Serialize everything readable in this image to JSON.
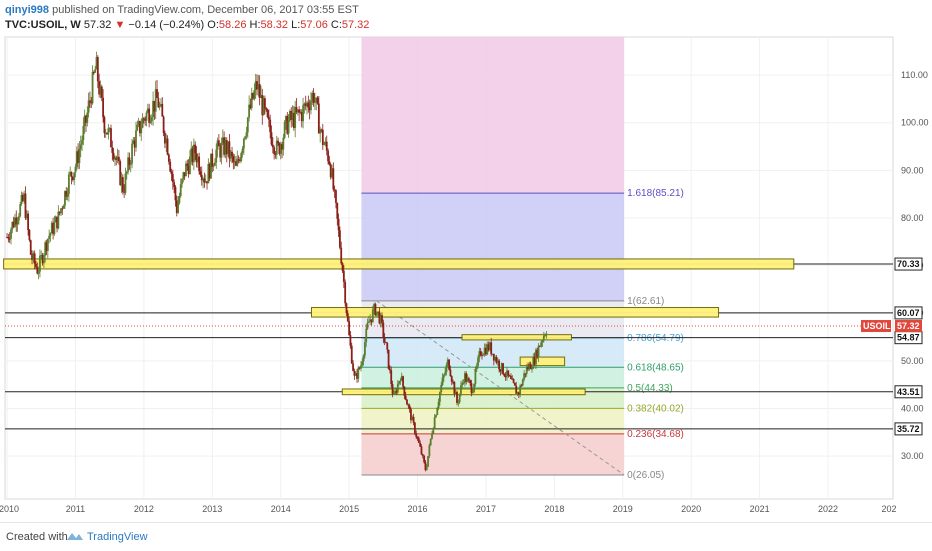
{
  "header": {
    "author": "qinyi998",
    "published_text": "published on TradingView.com, December 06, 2017 03:55 EST",
    "symbol": "TVC:USOIL, W",
    "last": "57.32",
    "change_arrow": "▼",
    "change": "−0.14 (−0.24%)",
    "o_label": "O:",
    "o": "58.26",
    "h_label": "H:",
    "h": "58.32",
    "l_label": "L:",
    "l": "57.06",
    "c_label": "C:",
    "c": "57.32"
  },
  "footer": {
    "created_with": "Created with",
    "brand": "TradingView"
  },
  "colors": {
    "bull": "#5a7d2e",
    "bear": "#8a1f1a",
    "zone_fill": "#fff27a",
    "zone_stroke": "#6b6400"
  },
  "chart_data": {
    "type": "candlestick",
    "x_ticks": [
      "2010",
      "2011",
      "2012",
      "2013",
      "2014",
      "2015",
      "2016",
      "2017",
      "2018",
      "2019",
      "2020",
      "2021",
      "2022",
      "202"
    ],
    "y_ticks": [
      "30.00",
      "40.00",
      "50.00",
      "60.00",
      "70.00",
      "80.00",
      "90.00",
      "100.00",
      "110.00"
    ],
    "ylim": [
      21,
      118
    ],
    "current_price_label": {
      "symbol": "USOIL",
      "value": "57.32",
      "price": 57.32
    },
    "horizontal_levels": [
      {
        "label": "70.33",
        "price": 70.33
      },
      {
        "label": "60.07",
        "price": 60.07
      },
      {
        "label": "54.87",
        "price": 54.87
      },
      {
        "label": "43.51",
        "price": 43.51
      },
      {
        "label": "35.72",
        "price": 35.72
      }
    ],
    "fibonacci": {
      "levels": [
        {
          "ratio": "1.618",
          "price": 85.21,
          "text": "1.618(85.21)",
          "color": "#5b4fc7",
          "fill": "#c9c8f4"
        },
        {
          "ratio": "1",
          "price": 62.61,
          "text": "1(62.61)",
          "color": "#888888",
          "fill": "#e6e6f0"
        },
        {
          "ratio": "0.786",
          "price": 54.79,
          "text": "0.786(54.79)",
          "color": "#4aa3d9",
          "fill": "#cfe8f6"
        },
        {
          "ratio": "0.618",
          "price": 48.65,
          "text": "0.618(48.65)",
          "color": "#2e9e6a",
          "fill": "#c9eedd"
        },
        {
          "ratio": "0.5",
          "price": 44.33,
          "text": "0.5(44.33)",
          "color": "#3da35a",
          "fill": "#d6f0c5"
        },
        {
          "ratio": "0.382",
          "price": 40.02,
          "text": "0.382(40.02)",
          "color": "#94a82e",
          "fill": "#eef2c2"
        },
        {
          "ratio": "0.236",
          "price": 34.68,
          "text": "0.236(34.68)",
          "color": "#c8383a",
          "fill": "#f6cccc"
        },
        {
          "ratio": "0",
          "price": 26.05,
          "text": "0(26.05)",
          "color": "#888888",
          "fill": ""
        }
      ],
      "top_zone_fill": "#f2c9e6"
    },
    "yellow_zones": [
      {
        "date_from": 2009.95,
        "date_to": 2021.5,
        "price_lo": 69.3,
        "price_hi": 71.4
      },
      {
        "date_from": 2014.45,
        "date_to": 2020.4,
        "price_lo": 59.2,
        "price_hi": 61.2
      },
      {
        "date_from": 2016.65,
        "date_to": 2018.25,
        "price_lo": 54.4,
        "price_hi": 55.5
      },
      {
        "date_from": 2017.5,
        "date_to": 2018.15,
        "price_lo": 49.0,
        "price_hi": 50.8
      },
      {
        "date_from": 2014.9,
        "date_to": 2018.45,
        "price_lo": 42.9,
        "price_hi": 44.1
      }
    ],
    "series": [
      {
        "date": 2010.0,
        "price": 76
      },
      {
        "date": 2010.12,
        "price": 80
      },
      {
        "date": 2010.25,
        "price": 84
      },
      {
        "date": 2010.35,
        "price": 72
      },
      {
        "date": 2010.45,
        "price": 69
      },
      {
        "date": 2010.6,
        "price": 76
      },
      {
        "date": 2010.75,
        "price": 80
      },
      {
        "date": 2010.9,
        "price": 88
      },
      {
        "date": 2011.0,
        "price": 91
      },
      {
        "date": 2011.15,
        "price": 100
      },
      {
        "date": 2011.3,
        "price": 112
      },
      {
        "date": 2011.42,
        "price": 100
      },
      {
        "date": 2011.55,
        "price": 95
      },
      {
        "date": 2011.7,
        "price": 86
      },
      {
        "date": 2011.85,
        "price": 96
      },
      {
        "date": 2012.0,
        "price": 101
      },
      {
        "date": 2012.2,
        "price": 105
      },
      {
        "date": 2012.35,
        "price": 95
      },
      {
        "date": 2012.48,
        "price": 82
      },
      {
        "date": 2012.6,
        "price": 90
      },
      {
        "date": 2012.75,
        "price": 94
      },
      {
        "date": 2012.9,
        "price": 88
      },
      {
        "date": 2013.05,
        "price": 94
      },
      {
        "date": 2013.2,
        "price": 95
      },
      {
        "date": 2013.35,
        "price": 90
      },
      {
        "date": 2013.5,
        "price": 100
      },
      {
        "date": 2013.65,
        "price": 108
      },
      {
        "date": 2013.8,
        "price": 100
      },
      {
        "date": 2013.95,
        "price": 94
      },
      {
        "date": 2014.1,
        "price": 100
      },
      {
        "date": 2014.3,
        "price": 102
      },
      {
        "date": 2014.48,
        "price": 106
      },
      {
        "date": 2014.6,
        "price": 97
      },
      {
        "date": 2014.72,
        "price": 92
      },
      {
        "date": 2014.82,
        "price": 80
      },
      {
        "date": 2014.9,
        "price": 70
      },
      {
        "date": 2015.0,
        "price": 55
      },
      {
        "date": 2015.08,
        "price": 46
      },
      {
        "date": 2015.17,
        "price": 49
      },
      {
        "date": 2015.28,
        "price": 58
      },
      {
        "date": 2015.38,
        "price": 61
      },
      {
        "date": 2015.45,
        "price": 59
      },
      {
        "date": 2015.55,
        "price": 52
      },
      {
        "date": 2015.65,
        "price": 42
      },
      {
        "date": 2015.75,
        "price": 47
      },
      {
        "date": 2015.85,
        "price": 41
      },
      {
        "date": 2015.95,
        "price": 36
      },
      {
        "date": 2016.05,
        "price": 31
      },
      {
        "date": 2016.12,
        "price": 27
      },
      {
        "date": 2016.22,
        "price": 36
      },
      {
        "date": 2016.35,
        "price": 45
      },
      {
        "date": 2016.45,
        "price": 50
      },
      {
        "date": 2016.58,
        "price": 41
      },
      {
        "date": 2016.68,
        "price": 47
      },
      {
        "date": 2016.8,
        "price": 44
      },
      {
        "date": 2016.92,
        "price": 52
      },
      {
        "date": 2017.05,
        "price": 53
      },
      {
        "date": 2017.2,
        "price": 49
      },
      {
        "date": 2017.35,
        "price": 46
      },
      {
        "date": 2017.47,
        "price": 43
      },
      {
        "date": 2017.58,
        "price": 48
      },
      {
        "date": 2017.7,
        "price": 50
      },
      {
        "date": 2017.8,
        "price": 54
      },
      {
        "date": 2017.9,
        "price": 57.32
      }
    ]
  }
}
